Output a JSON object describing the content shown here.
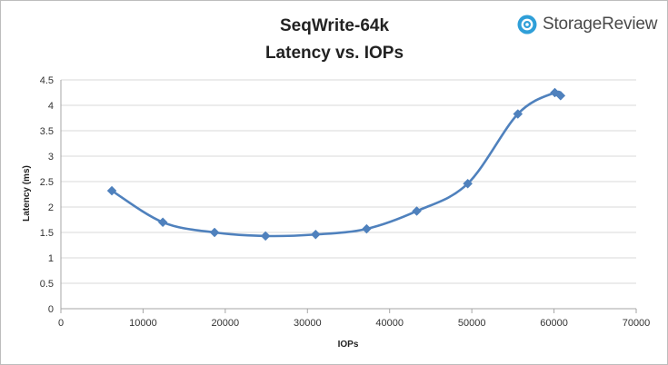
{
  "brand": {
    "name": "StorageReview",
    "icon": "storagereview-logo-icon",
    "color": "#2f9fd8"
  },
  "chart_data": {
    "type": "line",
    "title": "SeqWrite-64k",
    "subtitle": "Latency vs. IOPs",
    "xlabel": "IOPs",
    "ylabel": "Latency (ms)",
    "xlim": [
      0,
      70000
    ],
    "ylim": [
      0,
      4.5
    ],
    "xticks": [
      0,
      10000,
      20000,
      30000,
      40000,
      50000,
      60000,
      70000
    ],
    "yticks": [
      0,
      0.5,
      1,
      1.5,
      2,
      2.5,
      3,
      3.5,
      4,
      4.5
    ],
    "grid": true,
    "smooth": true,
    "series": [
      {
        "color": "#4f81bd",
        "marker": "diamond",
        "x": [
          6200,
          12400,
          18700,
          24900,
          31000,
          37200,
          43300,
          49500,
          55600,
          60100,
          60800
        ],
        "y": [
          2.32,
          1.7,
          1.5,
          1.43,
          1.46,
          1.57,
          1.92,
          2.46,
          3.83,
          4.25,
          4.19
        ]
      }
    ]
  }
}
